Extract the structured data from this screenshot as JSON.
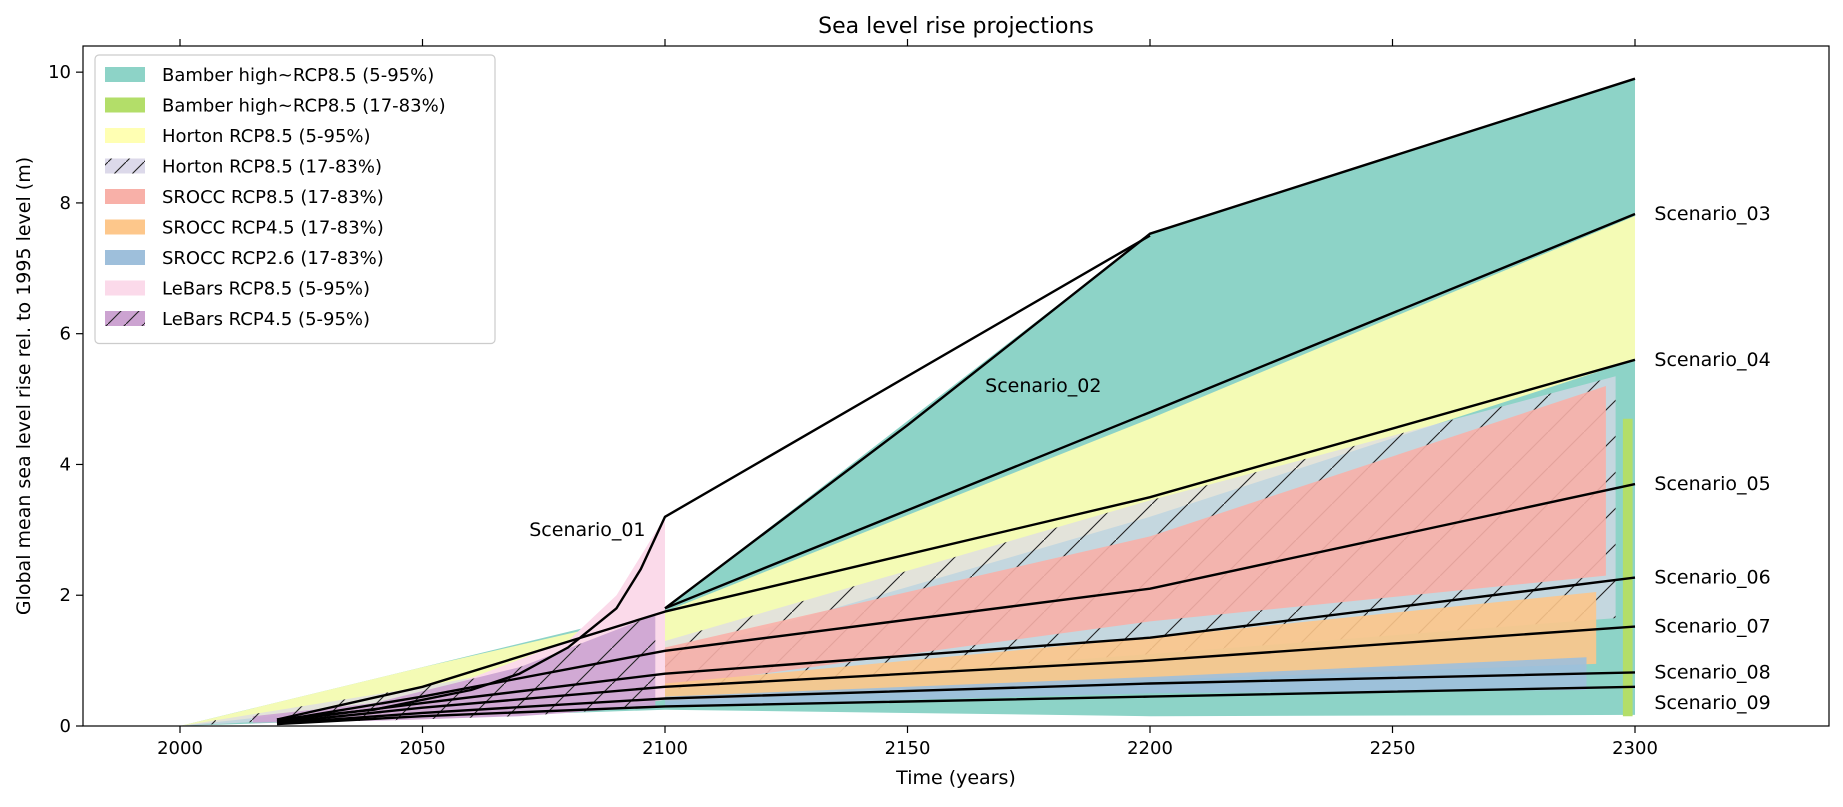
{
  "chart_data": {
    "type": "area",
    "title": "Sea level rise projections",
    "xlabel": "Time (years)",
    "ylabel": "Global mean sea level rise rel. to 1995 level (m)",
    "xlim": [
      1980,
      2340
    ],
    "ylim": [
      0,
      10.4
    ],
    "xticks": [
      2000,
      2050,
      2100,
      2150,
      2200,
      2250,
      2300
    ],
    "yticks": [
      0,
      2,
      4,
      6,
      8,
      10
    ],
    "grid": false,
    "legend_position": "upper-left",
    "legend": [
      {
        "label": "Bamber high~RCP8.5 (5-95%)",
        "color": "#8dd3c7",
        "hatch": false
      },
      {
        "label": "Bamber high~RCP8.5 (17-83%)",
        "color": "#b3de69",
        "hatch": false
      },
      {
        "label": "Horton RCP8.5 (5-95%)",
        "color": "#ffffb3",
        "hatch": false
      },
      {
        "label": "Horton RCP8.5 (17-83%)",
        "color": "#dcd9ea",
        "hatch": true
      },
      {
        "label": "SROCC RCP8.5 (17-83%)",
        "color": "#f8b0a8",
        "hatch": false
      },
      {
        "label": "SROCC RCP4.5 (17-83%)",
        "color": "#fdc78b",
        "hatch": false
      },
      {
        "label": "SROCC RCP2.6 (17-83%)",
        "color": "#9ebfdb",
        "hatch": false
      },
      {
        "label": "LeBars RCP8.5 (5-95%)",
        "color": "#fbdaea",
        "hatch": false
      },
      {
        "label": "LeBars RCP4.5 (5-95%)",
        "color": "#cca3d1",
        "hatch": true
      }
    ],
    "bands": [
      {
        "name": "Bamber high~RCP8.5 (5-95%)",
        "color": "#8dd3c7",
        "hatch": false,
        "opacity": 1,
        "x": [
          2000,
          2100,
          2200,
          2300
        ],
        "lower": [
          0,
          0.25,
          0.15,
          0.17
        ],
        "upper": [
          0,
          1.8,
          7.53,
          9.9
        ]
      },
      {
        "name": "Horton RCP8.5 (5-95%)",
        "color": "#ffffb3",
        "hatch": false,
        "opacity": 0.9,
        "x": [
          2000,
          2050,
          2100,
          2200,
          2300
        ],
        "lower": [
          0,
          0.4,
          1.05,
          3.2,
          5.6
        ],
        "upper": [
          0,
          0.9,
          1.75,
          4.7,
          7.8
        ]
      },
      {
        "name": "Horton RCP8.5 (17-83%)",
        "color": "#dcd9ea",
        "hatch": true,
        "opacity": 0.7,
        "x": [
          2000,
          2050,
          2100,
          2200,
          2296
        ],
        "lower": [
          0,
          0.2,
          0.55,
          1.1,
          1.65
        ],
        "upper": [
          0,
          0.6,
          1.3,
          3.45,
          5.35
        ]
      },
      {
        "name": "SROCC RCP8.5 (17-83%)",
        "color": "#f8b0a8",
        "hatch": false,
        "opacity": 0.9,
        "x": [
          2100,
          2200,
          2294
        ],
        "lower": [
          0.6,
          1.6,
          2.3
        ],
        "upper": [
          1.2,
          2.9,
          5.2
        ]
      },
      {
        "name": "SROCC RCP4.5 (17-83%)",
        "color": "#fdc78b",
        "hatch": false,
        "opacity": 0.9,
        "x": [
          2100,
          2200,
          2292
        ],
        "lower": [
          0.38,
          0.7,
          0.95
        ],
        "upper": [
          0.65,
          1.35,
          2.05
        ]
      },
      {
        "name": "SROCC RCP2.6 (17-83%)",
        "color": "#9ebfdb",
        "hatch": false,
        "opacity": 0.9,
        "x": [
          2100,
          2200,
          2290
        ],
        "lower": [
          0.3,
          0.5,
          0.55
        ],
        "upper": [
          0.45,
          0.75,
          1.05
        ]
      },
      {
        "name": "LeBars RCP8.5 (5-95%)",
        "color": "#fbdaea",
        "hatch": false,
        "opacity": 1,
        "x": [
          2020,
          2050,
          2080,
          2090,
          2100
        ],
        "lower": [
          0.05,
          0.1,
          0.2,
          0.3,
          0.4
        ],
        "upper": [
          0.15,
          0.45,
          1.3,
          2.0,
          3.2
        ]
      },
      {
        "name": "LeBars RCP4.5 (5-95%)",
        "color": "#cca3d1",
        "hatch": true,
        "opacity": 0.9,
        "x": [
          2015,
          2040,
          2070,
          2098
        ],
        "lower": [
          0.05,
          0.08,
          0.15,
          0.3
        ],
        "upper": [
          0.15,
          0.35,
          0.9,
          1.7
        ]
      },
      {
        "name": "Bamber high~RCP8.5 (17-83%)",
        "color": "#b3de69",
        "hatch": false,
        "opacity": 1,
        "x": [
          2297.5,
          2299.5
        ],
        "lower": [
          0.15,
          0.15
        ],
        "upper": [
          4.7,
          4.7
        ]
      }
    ],
    "scenarios": [
      {
        "name": "Scenario_01",
        "x": [
          2020,
          2040,
          2060,
          2070,
          2080,
          2090,
          2095,
          2100,
          2200
        ],
        "y": [
          0.1,
          0.25,
          0.55,
          0.8,
          1.2,
          1.8,
          2.4,
          3.2,
          7.5
        ]
      },
      {
        "name": "Scenario_02",
        "x": [
          2100,
          2150,
          2200,
          2300
        ],
        "y": [
          1.8,
          4.6,
          7.53,
          9.9
        ]
      },
      {
        "name": "Scenario_03",
        "x": [
          2100,
          2200,
          2300
        ],
        "y": [
          1.8,
          4.8,
          7.83
        ]
      },
      {
        "name": "Scenario_04",
        "x": [
          2020,
          2050,
          2100,
          2200,
          2300
        ],
        "y": [
          0.1,
          0.6,
          1.75,
          3.5,
          5.6
        ]
      },
      {
        "name": "Scenario_05",
        "x": [
          2020,
          2050,
          2100,
          2200,
          2300
        ],
        "y": [
          0.08,
          0.45,
          1.15,
          2.1,
          3.7
        ]
      },
      {
        "name": "Scenario_06",
        "x": [
          2020,
          2050,
          2100,
          2200,
          2300
        ],
        "y": [
          0.07,
          0.35,
          0.8,
          1.35,
          2.27
        ]
      },
      {
        "name": "Scenario_07",
        "x": [
          2020,
          2050,
          2100,
          2200,
          2300
        ],
        "y": [
          0.05,
          0.28,
          0.6,
          1.0,
          1.52
        ]
      },
      {
        "name": "Scenario_08",
        "x": [
          2020,
          2050,
          2100,
          2200,
          2300
        ],
        "y": [
          0.04,
          0.2,
          0.42,
          0.65,
          0.82
        ]
      },
      {
        "name": "Scenario_09",
        "x": [
          2020,
          2050,
          2100,
          2200,
          2300
        ],
        "y": [
          0.03,
          0.15,
          0.3,
          0.45,
          0.6
        ]
      }
    ],
    "annotations": [
      {
        "text": "Scenario_01",
        "x": 2084,
        "y": 3.0
      },
      {
        "text": "Scenario_02",
        "x": 2178,
        "y": 5.2
      },
      {
        "text": "Scenario_03",
        "x": 2304,
        "y": 7.83
      },
      {
        "text": "Scenario_04",
        "x": 2304,
        "y": 5.6
      },
      {
        "text": "Scenario_05",
        "x": 2304,
        "y": 3.7
      },
      {
        "text": "Scenario_06",
        "x": 2304,
        "y": 2.27
      },
      {
        "text": "Scenario_07",
        "x": 2304,
        "y": 1.52
      },
      {
        "text": "Scenario_08",
        "x": 2304,
        "y": 0.82
      },
      {
        "text": "Scenario_09",
        "x": 2304,
        "y": 0.35
      }
    ]
  }
}
